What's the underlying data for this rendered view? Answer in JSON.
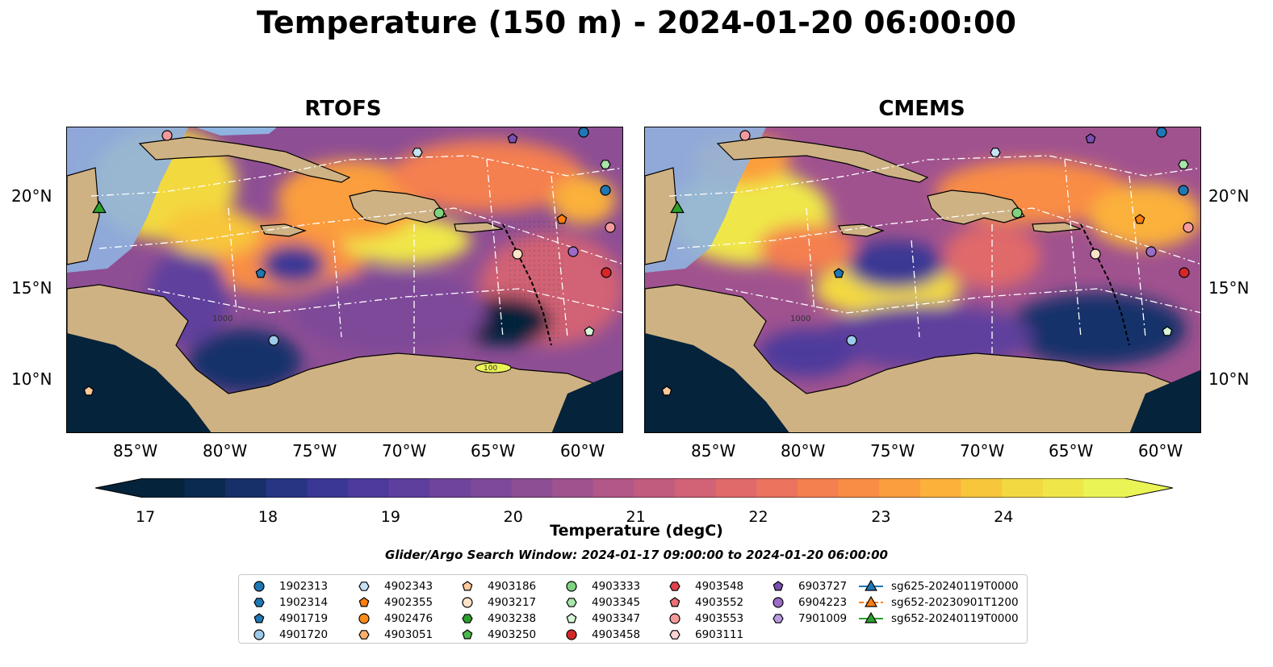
{
  "title": "Temperature (150 m) - 2024-01-20 06:00:00",
  "panels": [
    {
      "title": "RTOFS",
      "id": "rtofs"
    },
    {
      "title": "CMEMS",
      "id": "cmems"
    }
  ],
  "lon_ticks": [
    "85°W",
    "80°W",
    "75°W",
    "70°W",
    "65°W",
    "60°W"
  ],
  "lat_ticks": [
    "20°N",
    "15°N",
    "10°N"
  ],
  "bathymetry_labels": {
    "contour_100": "100",
    "contour_1000": "1000"
  },
  "colorbar": {
    "label": "Temperature (degC)",
    "ticks": [
      "17",
      "18",
      "19",
      "20",
      "21",
      "22",
      "23",
      "24"
    ],
    "colors": [
      "#05233a",
      "#0b2a4f",
      "#17306a",
      "#283582",
      "#3b3794",
      "#4d3a9c",
      "#5e3f9d",
      "#6e449c",
      "#7e4999",
      "#8e4e94",
      "#a0528f",
      "#b25787",
      "#c25c7f",
      "#d26275",
      "#e0696a",
      "#ec735d",
      "#f47f4f",
      "#f98d45",
      "#fb9e3e",
      "#fbb13a",
      "#f8c63b",
      "#f3d941",
      "#efe74a",
      "#eaf454"
    ],
    "extend": "both"
  },
  "search_window": "Glider/Argo Search Window: 2024-01-17 09:00:00 to 2024-01-20 06:00:00",
  "legend": [
    {
      "label": "1902313",
      "marker": "circle",
      "color": "#1f77b4"
    },
    {
      "label": "1902314",
      "marker": "hexagon",
      "color": "#1f77b4"
    },
    {
      "label": "4901719",
      "marker": "pentagon",
      "color": "#1f77b4"
    },
    {
      "label": "4901720",
      "marker": "circle",
      "color": "#9ecae9"
    },
    {
      "label": "4902343",
      "marker": "hexagon",
      "color": "#c6e2f5"
    },
    {
      "label": "4902355",
      "marker": "pentagon",
      "color": "#ff7f0e"
    },
    {
      "label": "4902476",
      "marker": "circle",
      "color": "#ff8c1a"
    },
    {
      "label": "4903051",
      "marker": "hexagon",
      "color": "#ffae6b"
    },
    {
      "label": "4903186",
      "marker": "pentagon",
      "color": "#ffc999"
    },
    {
      "label": "4903217",
      "marker": "circle",
      "color": "#ffe3c8"
    },
    {
      "label": "4903238",
      "marker": "hexagon",
      "color": "#2ca02c"
    },
    {
      "label": "4903250",
      "marker": "pentagon",
      "color": "#4cb84c"
    },
    {
      "label": "4903333",
      "marker": "circle",
      "color": "#7fd27f"
    },
    {
      "label": "4903345",
      "marker": "hexagon",
      "color": "#a9e6a9"
    },
    {
      "label": "4903347",
      "marker": "pentagon",
      "color": "#d7f5d7"
    },
    {
      "label": "4903458",
      "marker": "circle",
      "color": "#d62728"
    },
    {
      "label": "4903548",
      "marker": "hexagon",
      "color": "#e0414a"
    },
    {
      "label": "4903552",
      "marker": "pentagon",
      "color": "#ec6f74"
    },
    {
      "label": "4903553",
      "marker": "circle",
      "color": "#f59a9c"
    },
    {
      "label": "6903111",
      "marker": "hexagon",
      "color": "#fcd3d3"
    },
    {
      "label": "6903727",
      "marker": "pentagon",
      "color": "#7b4fb0"
    },
    {
      "label": "6904223",
      "marker": "circle",
      "color": "#9b6cc7"
    },
    {
      "label": "7901009",
      "marker": "hexagon",
      "color": "#b99ae0"
    },
    {
      "label": "sg625-20240119T0000",
      "marker": "triangle-line",
      "color": "#1f77b4"
    },
    {
      "label": "sg652-20230901T1200",
      "marker": "triangle-line",
      "color": "#ff7f0e"
    },
    {
      "label": "sg652-20240119T0000",
      "marker": "triangle-line",
      "color": "#2ca02c"
    }
  ]
}
